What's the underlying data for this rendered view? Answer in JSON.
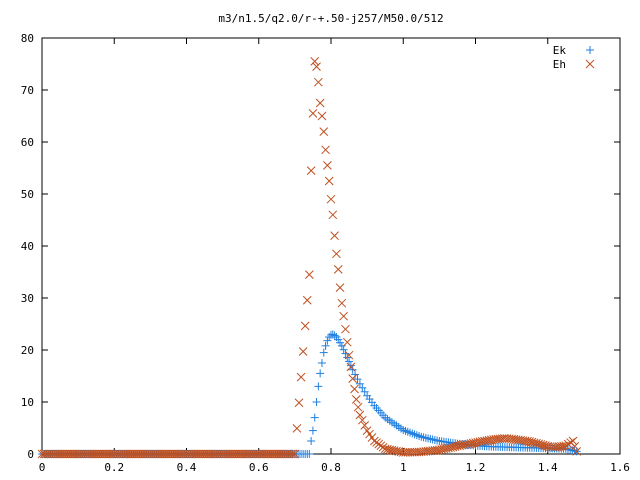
{
  "chart_data": {
    "type": "scatter",
    "title": "m3/n1.5/q2.0/r-+.50-j257/M50.0/512",
    "xlabel": "",
    "ylabel": "",
    "xlim": [
      0,
      1.6
    ],
    "ylim": [
      0,
      80
    ],
    "xticks": [
      0,
      0.2,
      0.4,
      0.6,
      0.8,
      1,
      1.2,
      1.4,
      1.6
    ],
    "xtick_labels": [
      "0",
      "0.2",
      "0.4",
      "0.6",
      "0.8",
      "1",
      "1.2",
      "1.4",
      "1.6"
    ],
    "yticks": [
      0,
      10,
      20,
      30,
      40,
      50,
      60,
      70,
      80
    ],
    "ytick_labels": [
      "0",
      "10",
      "20",
      "30",
      "40",
      "50",
      "60",
      "70",
      "80"
    ],
    "grid": false,
    "legend_position": "top-right",
    "series": [
      {
        "name": "Ek",
        "marker": "plus",
        "color": "#1f7fe0",
        "x": [
          0.0,
          0.1,
          0.2,
          0.3,
          0.4,
          0.5,
          0.6,
          0.7,
          0.74,
          0.745,
          0.75,
          0.755,
          0.76,
          0.765,
          0.77,
          0.775,
          0.78,
          0.785,
          0.79,
          0.795,
          0.8,
          0.805,
          0.81,
          0.815,
          0.82,
          0.83,
          0.84,
          0.85,
          0.86,
          0.88,
          0.9,
          0.92,
          0.95,
          1.0,
          1.05,
          1.1,
          1.15,
          1.2,
          1.25,
          1.3,
          1.35,
          1.4,
          1.45,
          1.48
        ],
        "y": [
          0,
          0,
          0,
          0,
          0,
          0,
          0,
          0,
          0,
          2.5,
          4.5,
          7,
          10,
          13,
          15.5,
          17.5,
          19.5,
          20.8,
          21.8,
          22.5,
          22.9,
          23.0,
          22.8,
          22.5,
          22.0,
          20.8,
          19.3,
          17.8,
          16.2,
          13.5,
          11.2,
          9.3,
          7.0,
          4.6,
          3.3,
          2.5,
          2.0,
          1.6,
          1.4,
          1.3,
          1.2,
          1.1,
          1.0,
          0.5
        ]
      },
      {
        "name": "Eh",
        "marker": "cross",
        "color": "#c0501f",
        "x": [
          0.0,
          0.1,
          0.2,
          0.3,
          0.4,
          0.5,
          0.6,
          0.7,
          0.74,
          0.745,
          0.75,
          0.755,
          0.76,
          0.765,
          0.77,
          0.775,
          0.78,
          0.785,
          0.79,
          0.795,
          0.8,
          0.805,
          0.81,
          0.815,
          0.82,
          0.825,
          0.83,
          0.84,
          0.85,
          0.86,
          0.87,
          0.88,
          0.9,
          0.92,
          0.95,
          1.0,
          1.05,
          1.1,
          1.15,
          1.2,
          1.25,
          1.28,
          1.3,
          1.35,
          1.4,
          1.42,
          1.45,
          1.47,
          1.48
        ],
        "y": [
          0,
          0,
          0,
          0,
          0,
          0,
          0,
          0,
          34.5,
          54.5,
          65.5,
          75.5,
          74.5,
          71.5,
          67.5,
          65,
          62,
          58.5,
          55.5,
          52.5,
          49,
          46,
          42,
          38.5,
          35.5,
          32,
          29,
          24,
          19,
          14.5,
          10.5,
          7.5,
          4.5,
          2.5,
          1.0,
          0.3,
          0.4,
          0.8,
          1.5,
          2.2,
          2.8,
          3.0,
          2.9,
          2.4,
          1.5,
          1.3,
          1.6,
          2.5,
          0.5
        ]
      }
    ]
  }
}
